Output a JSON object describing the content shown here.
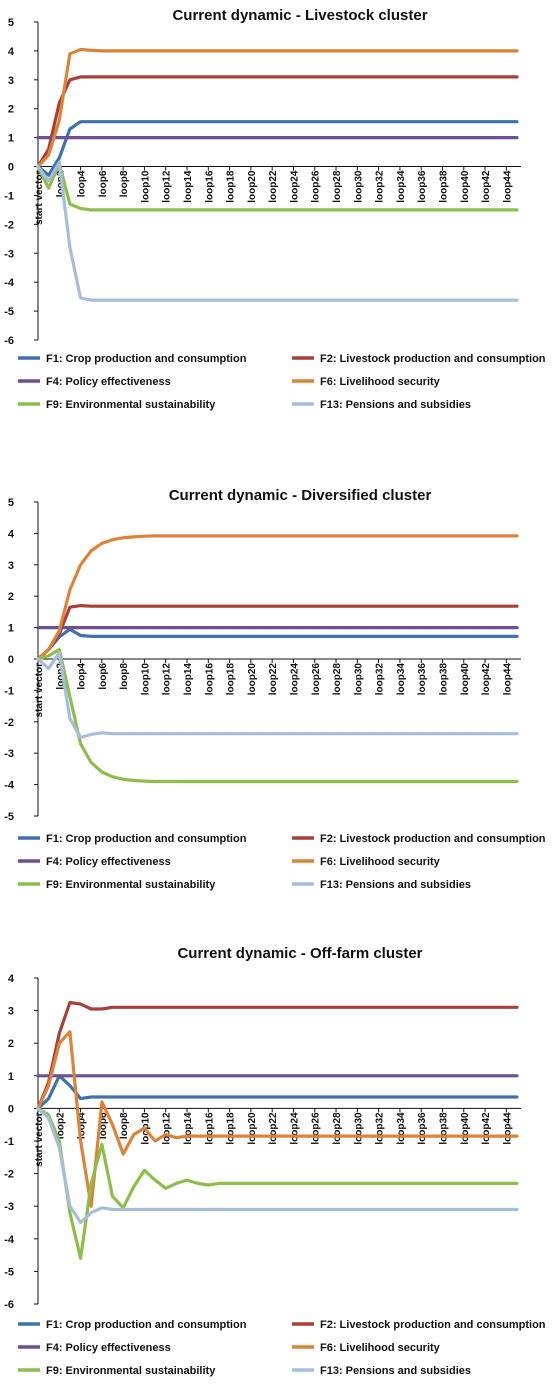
{
  "colors": {
    "F1": "#3f72ab",
    "F2": "#a6403a",
    "F4": "#6f4e93",
    "F6": "#dd8338",
    "F9": "#8cbf4a",
    "F13": "#a7bedb"
  },
  "x_ticks": [
    "start vector",
    "loop2",
    "loop4",
    "loop6",
    "loop8",
    "loop10",
    "loop12",
    "loop14",
    "loop16",
    "loop18",
    "loop20",
    "loop22",
    "loop24",
    "loop26",
    "loop28",
    "loop30",
    "loop32",
    "loop34",
    "loop36",
    "loop38",
    "loop40",
    "loop42",
    "loop44"
  ],
  "chart_data": [
    {
      "type": "line",
      "title": "Current dynamic - Livestock cluster",
      "ylim": [
        -6,
        5
      ],
      "yticks": [
        "-6",
        "-5",
        "-4",
        "-3",
        "-2",
        "-1",
        "0",
        "1",
        "2",
        "3",
        "4",
        "5"
      ],
      "x": [
        0,
        1,
        2,
        3,
        4,
        5,
        6,
        7,
        8,
        9,
        10,
        45
      ],
      "series": [
        {
          "key": "F1",
          "name": "F1: Crop production and consumption",
          "values": [
            0,
            -0.3,
            0.3,
            1.3,
            1.55,
            1.55,
            1.55,
            1.55,
            1.55,
            1.55,
            1.55,
            1.55
          ]
        },
        {
          "key": "F2",
          "name": "F2: Livestock production and consumption",
          "values": [
            0,
            0.6,
            2.2,
            3.0,
            3.1,
            3.1,
            3.1,
            3.1,
            3.1,
            3.1,
            3.1,
            3.1
          ]
        },
        {
          "key": "F4",
          "name": "F4: Policy effectiveness",
          "values": [
            1,
            1,
            1,
            1,
            1,
            1,
            1,
            1,
            1,
            1,
            1,
            1
          ]
        },
        {
          "key": "F6",
          "name": "F6: Livelihood security",
          "values": [
            0,
            0.4,
            1.6,
            3.9,
            4.05,
            4.02,
            4.0,
            4.0,
            4.0,
            4.0,
            4.0,
            4.0
          ]
        },
        {
          "key": "F9",
          "name": "F9: Environmental sustainability",
          "values": [
            0,
            -0.75,
            0.1,
            -1.3,
            -1.45,
            -1.5,
            -1.5,
            -1.5,
            -1.5,
            -1.5,
            -1.5,
            -1.5
          ]
        },
        {
          "key": "F13",
          "name": "F13: Pensions and subsidies",
          "values": [
            0,
            -0.5,
            0.15,
            -2.8,
            -4.55,
            -4.62,
            -4.62,
            -4.62,
            -4.62,
            -4.62,
            -4.62,
            -4.62
          ]
        }
      ]
    },
    {
      "type": "line",
      "title": "Current dynamic - Diversified cluster",
      "ylim": [
        -5,
        5
      ],
      "yticks": [
        "-5",
        "-4",
        "-3",
        "-2",
        "-1",
        "0",
        "1",
        "2",
        "3",
        "4",
        "5"
      ],
      "x": [
        0,
        1,
        2,
        3,
        4,
        5,
        6,
        7,
        8,
        9,
        10,
        11,
        12,
        13,
        45
      ],
      "series": [
        {
          "key": "F1",
          "name": "F1: Crop production and consumption",
          "values": [
            0,
            0.3,
            0.7,
            0.95,
            0.75,
            0.72,
            0.72,
            0.72,
            0.72,
            0.72,
            0.72,
            0.72,
            0.72,
            0.72,
            0.72
          ]
        },
        {
          "key": "F2",
          "name": "F2: Livestock production and consumption",
          "values": [
            0,
            0.3,
            0.8,
            1.65,
            1.7,
            1.68,
            1.68,
            1.68,
            1.68,
            1.68,
            1.68,
            1.68,
            1.68,
            1.68,
            1.68
          ]
        },
        {
          "key": "F4",
          "name": "F4: Policy effectiveness",
          "values": [
            1,
            1,
            1,
            1,
            1,
            1,
            1,
            1,
            1,
            1,
            1,
            1,
            1,
            1,
            1
          ]
        },
        {
          "key": "F6",
          "name": "F6: Livelihood security",
          "values": [
            0,
            0.3,
            0.9,
            2.2,
            3.0,
            3.45,
            3.68,
            3.8,
            3.86,
            3.89,
            3.91,
            3.92,
            3.92,
            3.92,
            3.92
          ]
        },
        {
          "key": "F9",
          "name": "F9: Environmental sustainability",
          "values": [
            0,
            0.1,
            0.3,
            -1.2,
            -2.7,
            -3.3,
            -3.6,
            -3.75,
            -3.83,
            -3.87,
            -3.89,
            -3.9,
            -3.9,
            -3.9,
            -3.9
          ]
        },
        {
          "key": "F13",
          "name": "F13: Pensions and subsidies",
          "values": [
            0,
            -0.3,
            0.2,
            -1.9,
            -2.5,
            -2.4,
            -2.35,
            -2.38,
            -2.38,
            -2.38,
            -2.38,
            -2.38,
            -2.38,
            -2.38,
            -2.38
          ]
        }
      ]
    },
    {
      "type": "line",
      "title": "Current dynamic - Off-farm cluster",
      "ylim": [
        -6,
        4
      ],
      "yticks": [
        "-6",
        "-5",
        "-4",
        "-3",
        "-2",
        "-1",
        "0",
        "1",
        "2",
        "3",
        "4"
      ],
      "x": [
        0,
        1,
        2,
        3,
        4,
        5,
        6,
        7,
        8,
        9,
        10,
        11,
        12,
        13,
        14,
        15,
        16,
        17,
        18,
        45
      ],
      "series": [
        {
          "key": "F1",
          "name": "F1: Crop production and consumption",
          "values": [
            0,
            0.3,
            1.0,
            0.7,
            0.3,
            0.35,
            0.35,
            0.35,
            0.35,
            0.35,
            0.35,
            0.35,
            0.35,
            0.35,
            0.35,
            0.35,
            0.35,
            0.35,
            0.35,
            0.35
          ]
        },
        {
          "key": "F2",
          "name": "F2: Livestock production and consumption",
          "values": [
            0,
            0.8,
            2.3,
            3.25,
            3.2,
            3.05,
            3.05,
            3.1,
            3.1,
            3.1,
            3.1,
            3.1,
            3.1,
            3.1,
            3.1,
            3.1,
            3.1,
            3.1,
            3.1,
            3.1
          ]
        },
        {
          "key": "F4",
          "name": "F4: Policy effectiveness",
          "values": [
            1,
            1,
            1,
            1,
            1,
            1,
            1,
            1,
            1,
            1,
            1,
            1,
            1,
            1,
            1,
            1,
            1,
            1,
            1,
            1
          ]
        },
        {
          "key": "F6",
          "name": "F6: Livelihood security",
          "values": [
            0,
            0.7,
            2.0,
            2.35,
            -1.0,
            -3.0,
            0.2,
            -0.5,
            -1.4,
            -0.8,
            -0.6,
            -1.0,
            -0.8,
            -0.9,
            -0.85,
            -0.85,
            -0.85,
            -0.85,
            -0.85,
            -0.85
          ]
        },
        {
          "key": "F9",
          "name": "F9: Environmental sustainability",
          "values": [
            0,
            -0.2,
            -1.0,
            -3.2,
            -4.6,
            -2.3,
            -1.1,
            -2.7,
            -3.05,
            -2.4,
            -1.9,
            -2.2,
            -2.45,
            -2.3,
            -2.2,
            -2.3,
            -2.35,
            -2.3,
            -2.3,
            -2.3
          ]
        },
        {
          "key": "F13",
          "name": "F13: Pensions and subsidies",
          "values": [
            0,
            -0.3,
            -1.2,
            -3.0,
            -3.5,
            -3.2,
            -3.05,
            -3.1,
            -3.1,
            -3.1,
            -3.1,
            -3.1,
            -3.1,
            -3.1,
            -3.1,
            -3.1,
            -3.1,
            -3.1,
            -3.1,
            -3.1
          ]
        }
      ]
    }
  ],
  "legend_order": [
    "F1",
    "F2",
    "F4",
    "F6",
    "F9",
    "F13"
  ]
}
